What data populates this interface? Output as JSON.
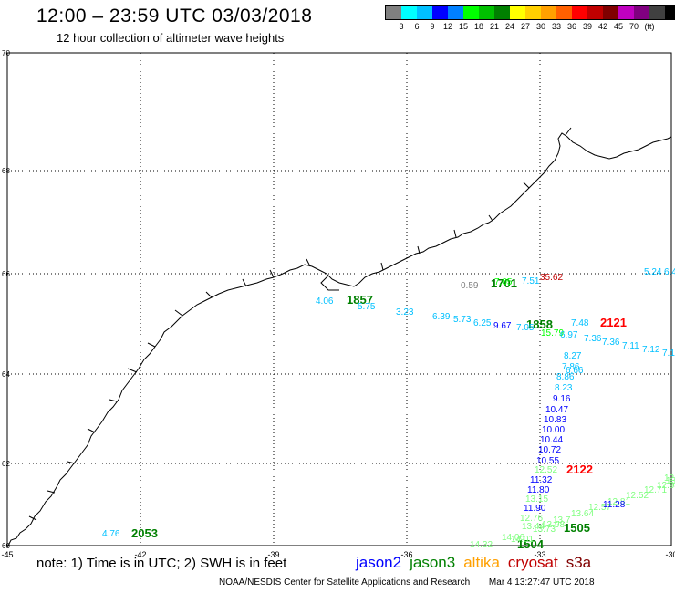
{
  "header": {
    "title": "12:00 – 23:59 UTC 03/03/2018",
    "subtitle": "12 hour collection of altimeter wave heights"
  },
  "legend": {
    "colors": [
      "#808080",
      "#00ffff",
      "#00c0ff",
      "#0000ff",
      "#0080ff",
      "#00ff00",
      "#00c000",
      "#008000",
      "#ffff00",
      "#ffd000",
      "#ffa000",
      "#ff6000",
      "#ff0000",
      "#c00000",
      "#800000",
      "#c000c0",
      "#800080",
      "#404040",
      "#000000"
    ],
    "labels": [
      "3",
      "6",
      "9",
      "12",
      "15",
      "18",
      "21",
      "24",
      "27",
      "30",
      "33",
      "36",
      "39",
      "42",
      "45",
      "70",
      "(ft)"
    ]
  },
  "axes": {
    "lon_ticks": [
      "-45",
      "-42",
      "-39",
      "-36",
      "-33",
      "-30"
    ],
    "lat_ticks": [
      "70",
      "68",
      "66",
      "64",
      "62",
      "60"
    ]
  },
  "passes": [
    {
      "label": "1701",
      "color": "#008000"
    },
    {
      "label": "1857",
      "color": "#008000"
    },
    {
      "label": "1858",
      "color": "#008000"
    },
    {
      "label": "2121",
      "color": "#ff0000"
    },
    {
      "label": "2122",
      "color": "#ff0000"
    },
    {
      "label": "2053",
      "color": "#008000"
    },
    {
      "label": "1505",
      "color": "#008000"
    },
    {
      "label": "1504",
      "color": "#008000"
    }
  ],
  "measurements": [
    {
      "v": "0.59",
      "c": "#808080"
    },
    {
      "v": "7.05",
      "c": "#00ff00"
    },
    {
      "v": "7.51",
      "c": "#00c0ff"
    },
    {
      "v": "35.62",
      "c": "#c00000"
    },
    {
      "v": "5.24",
      "c": "#00c0ff"
    },
    {
      "v": "6.4",
      "c": "#00c0ff"
    },
    {
      "v": "4.06",
      "c": "#00c0ff"
    },
    {
      "v": "5.75",
      "c": "#00c0ff"
    },
    {
      "v": "3.23",
      "c": "#00c0ff"
    },
    {
      "v": "6.39",
      "c": "#00c0ff"
    },
    {
      "v": "5.73",
      "c": "#00c0ff"
    },
    {
      "v": "6.25",
      "c": "#00c0ff"
    },
    {
      "v": "9.67",
      "c": "#0000ff"
    },
    {
      "v": "7.05",
      "c": "#00c0ff"
    },
    {
      "v": "7.48",
      "c": "#00c0ff"
    },
    {
      "v": "15.79",
      "c": "#00ff00"
    },
    {
      "v": "6.97",
      "c": "#00c0ff"
    },
    {
      "v": "7.36",
      "c": "#00c0ff"
    },
    {
      "v": "7.36",
      "c": "#00c0ff"
    },
    {
      "v": "7.11",
      "c": "#00c0ff"
    },
    {
      "v": "7.12",
      "c": "#00c0ff"
    },
    {
      "v": "7.1",
      "c": "#00c0ff"
    },
    {
      "v": "6.66",
      "c": "#00c0ff"
    },
    {
      "v": "8.27",
      "c": "#00c0ff"
    },
    {
      "v": "7.86",
      "c": "#00c0ff"
    },
    {
      "v": "8.86",
      "c": "#00c0ff"
    },
    {
      "v": "8.23",
      "c": "#00c0ff"
    },
    {
      "v": "9.16",
      "c": "#0000ff"
    },
    {
      "v": "10.47",
      "c": "#0000ff"
    },
    {
      "v": "10.83",
      "c": "#0000ff"
    },
    {
      "v": "10.00",
      "c": "#0000ff"
    },
    {
      "v": "10.44",
      "c": "#0000ff"
    },
    {
      "v": "10.72",
      "c": "#0000ff"
    },
    {
      "v": "10.55",
      "c": "#0000ff"
    },
    {
      "v": "12.52",
      "c": "#80ff80"
    },
    {
      "v": "11.32",
      "c": "#0000ff"
    },
    {
      "v": "11.80",
      "c": "#0000ff"
    },
    {
      "v": "13.15",
      "c": "#80ff80"
    },
    {
      "v": "11.90",
      "c": "#0000ff"
    },
    {
      "v": "12.76",
      "c": "#80ff80"
    },
    {
      "v": "13.44",
      "c": "#80ff80"
    },
    {
      "v": "13.73",
      "c": "#80ff80"
    },
    {
      "v": "13.98",
      "c": "#80ff80"
    },
    {
      "v": "14.01",
      "c": "#80ff80"
    },
    {
      "v": "14.06",
      "c": "#80ff80"
    },
    {
      "v": "14.32",
      "c": "#80ff80"
    },
    {
      "v": "13.7",
      "c": "#80ff80"
    },
    {
      "v": "13.64",
      "c": "#80ff80"
    },
    {
      "v": "12.57",
      "c": "#80ff80"
    },
    {
      "v": "12.81",
      "c": "#80ff80"
    },
    {
      "v": "12.52",
      "c": "#80ff80"
    },
    {
      "v": "12.71",
      "c": "#80ff80"
    },
    {
      "v": "12.94",
      "c": "#80ff80"
    },
    {
      "v": "13",
      "c": "#80ff80"
    },
    {
      "v": "12",
      "c": "#80ff80"
    },
    {
      "v": "11.28",
      "c": "#0000ff"
    },
    {
      "v": "4.76",
      "c": "#00c0ff"
    }
  ],
  "footer": {
    "note": "note:  1) Time is in UTC;  2) SWH is in feet",
    "sats": [
      {
        "name": "jason2",
        "color": "#0000ff"
      },
      {
        "name": "jason3",
        "color": "#008000"
      },
      {
        "name": "altika",
        "color": "#ffa000"
      },
      {
        "name": "cryosat",
        "color": "#c00000"
      },
      {
        "name": "s3a",
        "color": "#800000"
      }
    ],
    "credit": "NOAA/NESDIS Center for Satellite Applications and Research",
    "timestamp": "Mar  4 13:27:47 UTC 2018"
  }
}
